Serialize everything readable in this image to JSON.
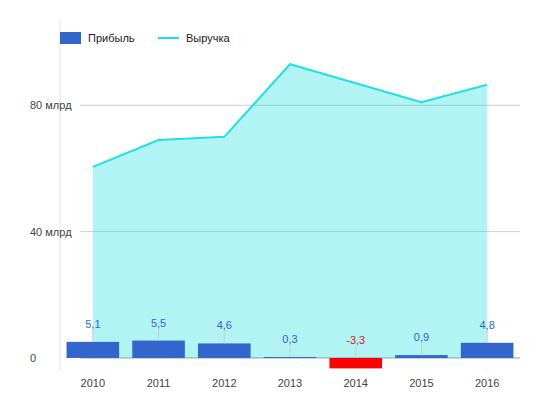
{
  "chart_data": {
    "type": "bar",
    "categories": [
      "2010",
      "2011",
      "2012",
      "2013",
      "2014",
      "2015",
      "2016"
    ],
    "series": [
      {
        "name": "Прибыль",
        "type": "bar",
        "color": "#3366cc",
        "colors": [
          "#3366cc",
          "#3366cc",
          "#3366cc",
          "#3366cc",
          "#ff0000",
          "#3366cc",
          "#3366cc"
        ],
        "values": [
          5.1,
          5.5,
          4.6,
          0.3,
          -3.3,
          0.9,
          4.8
        ],
        "value_labels": [
          "5,1",
          "5,5",
          "4,6",
          "0,3",
          "-3,3",
          "0,9",
          "4,8"
        ]
      },
      {
        "name": "Выручка",
        "type": "area",
        "color": "#22e0e0",
        "values": [
          60.5,
          69,
          70,
          93,
          87,
          81,
          86.5
        ]
      }
    ],
    "ylim": [
      -4,
      107
    ],
    "yticks": [
      0,
      {
        "value": 40,
        "label": "40 млрд"
      },
      {
        "value": 80,
        "label": "80 млрд"
      }
    ],
    "grid": true,
    "legend": "top-left",
    "data_labels": true
  }
}
